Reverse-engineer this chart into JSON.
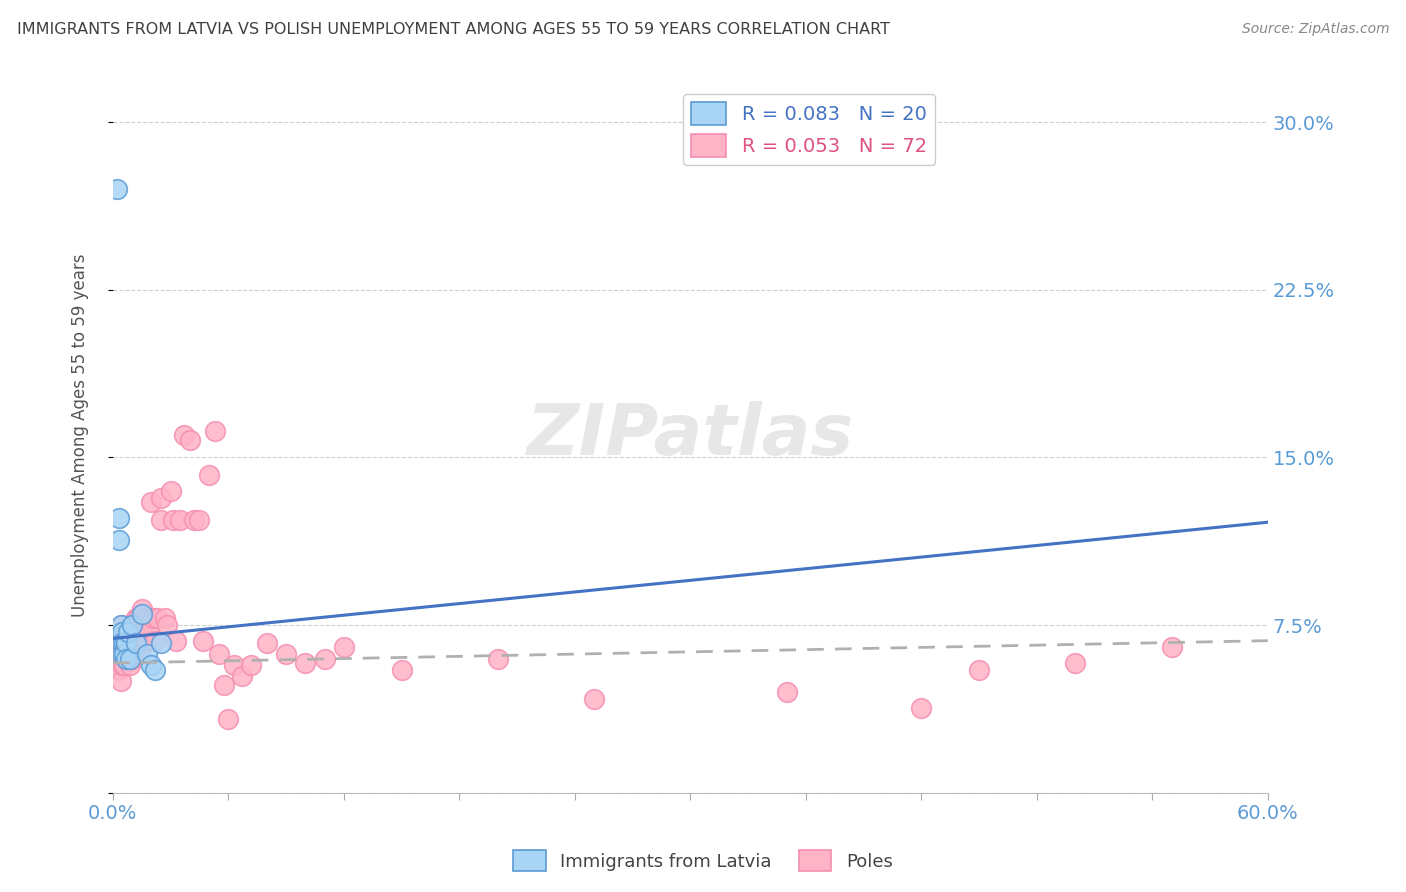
{
  "title": "IMMIGRANTS FROM LATVIA VS POLISH UNEMPLOYMENT AMONG AGES 55 TO 59 YEARS CORRELATION CHART",
  "source": "Source: ZipAtlas.com",
  "ylabel": "Unemployment Among Ages 55 to 59 years",
  "xlim": [
    0.0,
    0.6
  ],
  "ylim": [
    0.0,
    0.32
  ],
  "yticks": [
    0.0,
    0.075,
    0.15,
    0.225,
    0.3
  ],
  "ytick_labels": [
    "",
    "7.5%",
    "15.0%",
    "22.5%",
    "30.0%"
  ],
  "xtick_positions": [
    0.0,
    0.06,
    0.12,
    0.18,
    0.24,
    0.3,
    0.36,
    0.42,
    0.48,
    0.54,
    0.6
  ],
  "xtick_labels": [
    "0.0%",
    "",
    "",
    "",
    "",
    "",
    "",
    "",
    "",
    "",
    "60.0%"
  ],
  "legend1_label": "R = 0.083   N = 20",
  "legend2_label": "R = 0.053   N = 72",
  "legend_xlabel": "Immigrants from Latvia",
  "legend_ylabel": "Poles",
  "blue_color": "#a8d4f5",
  "pink_color": "#ffb3c6",
  "blue_edge_color": "#5b9bd5",
  "pink_edge_color": "#f48fb1",
  "blue_line_color": "#4472c4",
  "pink_line_color": "#c0c0c0",
  "axis_label_color": "#5b9bd5",
  "title_color": "#404040",
  "grid_color": "#d0d0d0",
  "blue_x": [
    0.002,
    0.003,
    0.003,
    0.004,
    0.005,
    0.005,
    0.005,
    0.006,
    0.006,
    0.007,
    0.007,
    0.008,
    0.009,
    0.01,
    0.012,
    0.015,
    0.018,
    0.02,
    0.022,
    0.025
  ],
  "blue_y": [
    0.27,
    0.123,
    0.113,
    0.075,
    0.072,
    0.067,
    0.062,
    0.067,
    0.062,
    0.067,
    0.06,
    0.072,
    0.06,
    0.075,
    0.067,
    0.08,
    0.062,
    0.057,
    0.055,
    0.067
  ],
  "pink_x": [
    0.001,
    0.001,
    0.002,
    0.002,
    0.003,
    0.003,
    0.003,
    0.004,
    0.004,
    0.004,
    0.005,
    0.005,
    0.005,
    0.006,
    0.006,
    0.007,
    0.007,
    0.008,
    0.008,
    0.009,
    0.009,
    0.01,
    0.01,
    0.011,
    0.012,
    0.013,
    0.013,
    0.014,
    0.015,
    0.015,
    0.016,
    0.017,
    0.018,
    0.019,
    0.02,
    0.021,
    0.022,
    0.023,
    0.025,
    0.025,
    0.027,
    0.028,
    0.03,
    0.031,
    0.033,
    0.035,
    0.037,
    0.04,
    0.042,
    0.045,
    0.047,
    0.05,
    0.053,
    0.055,
    0.058,
    0.06,
    0.063,
    0.067,
    0.072,
    0.08,
    0.09,
    0.1,
    0.11,
    0.12,
    0.15,
    0.2,
    0.25,
    0.35,
    0.42,
    0.45,
    0.5,
    0.55
  ],
  "pink_y": [
    0.067,
    0.06,
    0.072,
    0.06,
    0.067,
    0.06,
    0.055,
    0.067,
    0.06,
    0.05,
    0.075,
    0.065,
    0.057,
    0.065,
    0.057,
    0.072,
    0.06,
    0.072,
    0.06,
    0.067,
    0.057,
    0.075,
    0.06,
    0.065,
    0.078,
    0.078,
    0.065,
    0.062,
    0.082,
    0.072,
    0.078,
    0.068,
    0.078,
    0.072,
    0.13,
    0.078,
    0.068,
    0.078,
    0.132,
    0.122,
    0.078,
    0.075,
    0.135,
    0.122,
    0.068,
    0.122,
    0.16,
    0.158,
    0.122,
    0.122,
    0.068,
    0.142,
    0.162,
    0.062,
    0.048,
    0.033,
    0.057,
    0.052,
    0.057,
    0.067,
    0.062,
    0.058,
    0.06,
    0.065,
    0.055,
    0.06,
    0.042,
    0.045,
    0.038,
    0.055,
    0.058,
    0.065
  ],
  "blue_trend_x": [
    0.0,
    0.6
  ],
  "blue_trend_y": [
    0.069,
    0.121
  ],
  "pink_trend_x": [
    0.0,
    0.6
  ],
  "pink_trend_y": [
    0.058,
    0.068
  ]
}
